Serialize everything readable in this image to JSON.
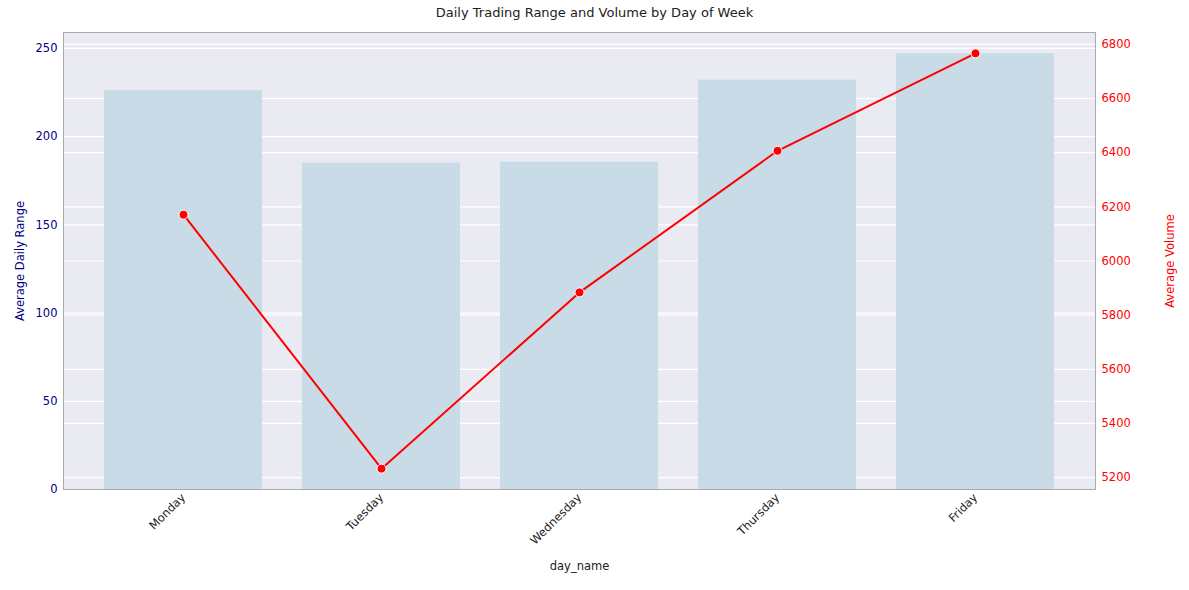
{
  "chart_data": {
    "type": "bar",
    "title": "Daily Trading Range and Volume by Day of Week",
    "x_label": "day_name",
    "y_label": "Average Daily Range",
    "y2_label": "Average Volume",
    "categories": [
      "Monday",
      "Tuesday",
      "Wednesday",
      "Thursday",
      "Friday"
    ],
    "series": [
      {
        "type": "bar",
        "color": "#c8dbe6",
        "values": [
          226,
          185,
          185.5,
          232,
          247
        ]
      },
      {
        "type": "line",
        "axis": "y2",
        "color": "red",
        "marker": "o",
        "values": [
          6171,
          5233,
          5884,
          6407,
          6767
        ]
      }
    ],
    "ylim": [
      0,
      259
    ],
    "yticks": [
      0,
      50,
      100,
      150,
      200,
      250
    ],
    "y2lim": [
      5156,
      6844
    ],
    "y2ticks": [
      5200,
      5400,
      5600,
      5800,
      6000,
      6200,
      6400,
      6600,
      6800
    ],
    "grid": true
  }
}
